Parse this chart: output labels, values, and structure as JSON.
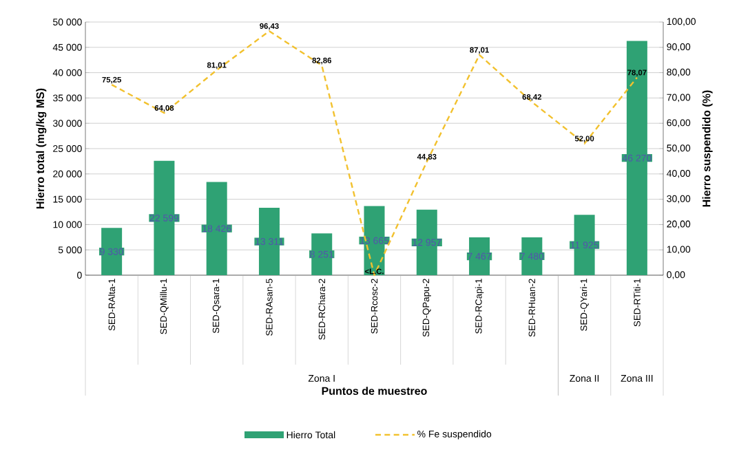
{
  "chart_data": {
    "type": "bar",
    "xlabel": "Puntos de muestreo",
    "ylabel": "Hierro total (mg/kg MS)",
    "y2label": "Hierro suspendido (%)",
    "categories": [
      "SED-RAlta-1",
      "SED-QMillu-1",
      "SED-Qsara-1",
      "SED-RAsan-5",
      "SED-RChara-2",
      "SED-Rcosc-2",
      "SED-QPapu-2",
      "SED-RCapi-1",
      "SED-RHuan-2",
      "SED-QYari-1",
      "SED-RTiti-1"
    ],
    "series": [
      {
        "name": "Hierro Total",
        "color": "#2fa274",
        "values": [
          9330,
          22599,
          18426,
          13311,
          8251,
          13665,
          12957,
          7467,
          7480,
          11925,
          46270
        ],
        "value_labels": [
          "9 330",
          "22 599",
          "18 426",
          "13 311",
          "8 251",
          "13 665",
          "12 957",
          "7 467",
          "7 480",
          "11 925",
          "46 270"
        ]
      },
      {
        "name": "% Fe suspendido",
        "type": "line",
        "axis": "y2",
        "color": "#f2c12e",
        "line_style": "dashed",
        "marker": "none",
        "values": [
          75.25,
          64.08,
          81.01,
          96.43,
          82.86,
          0,
          44.83,
          87.01,
          68.42,
          52.0,
          78.07
        ],
        "value_labels": [
          "75,25",
          "64,08",
          "81,01",
          "96,43",
          "82,86",
          "<L.C.",
          "44,83",
          "87,01",
          "68,42",
          "52,00",
          "78,07"
        ]
      }
    ],
    "ylim": [
      0,
      50000
    ],
    "yticks": [
      {
        "value": 0,
        "label": "0"
      },
      {
        "value": 5000,
        "label": "5 000"
      },
      {
        "value": 10000,
        "label": "10 000"
      },
      {
        "value": 15000,
        "label": "15 000"
      },
      {
        "value": 20000,
        "label": "20 000"
      },
      {
        "value": 25000,
        "label": "25 000"
      },
      {
        "value": 30000,
        "label": "30 000"
      },
      {
        "value": 35000,
        "label": "35 000"
      },
      {
        "value": 40000,
        "label": "40 000"
      },
      {
        "value": 45000,
        "label": "45 000"
      },
      {
        "value": 50000,
        "label": "50 000"
      }
    ],
    "y2lim": [
      0,
      100
    ],
    "y2ticks": [
      {
        "value": 0,
        "label": "0,00"
      },
      {
        "value": 10,
        "label": "10,00"
      },
      {
        "value": 20,
        "label": "20,00"
      },
      {
        "value": 30,
        "label": "30,00"
      },
      {
        "value": 40,
        "label": "40,00"
      },
      {
        "value": 50,
        "label": "50,00"
      },
      {
        "value": 60,
        "label": "60,00"
      },
      {
        "value": 70,
        "label": "70,00"
      },
      {
        "value": 80,
        "label": "80,00"
      },
      {
        "value": 90,
        "label": "90,00"
      },
      {
        "value": 100,
        "label": "100,00"
      }
    ],
    "annotations": [
      "Zona I",
      "Zona II",
      "Zona III"
    ],
    "grid": "y",
    "legend": "bottom"
  }
}
